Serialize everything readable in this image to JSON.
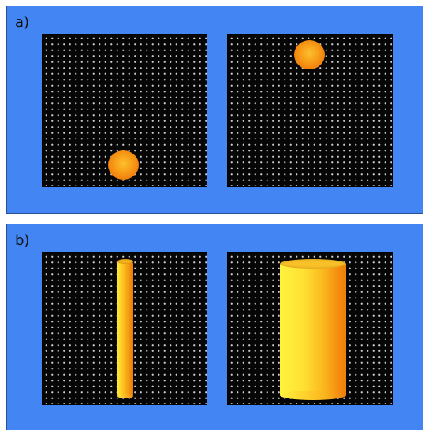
{
  "panels": [
    {
      "label": "a)"
    },
    {
      "label": "b)"
    }
  ],
  "colors": {
    "background": "#4386f3",
    "grid": "#060606",
    "object_orange": "#f28a12",
    "object_yellow": "#ffe63a"
  },
  "objects": [
    {
      "panel": "a",
      "view": "left",
      "shape": "sphere-icon"
    },
    {
      "panel": "a",
      "view": "right",
      "shape": "sphere-icon"
    },
    {
      "panel": "b",
      "view": "left",
      "shape": "thin-cylinder-icon"
    },
    {
      "panel": "b",
      "view": "right",
      "shape": "wide-cylinder-icon"
    }
  ]
}
